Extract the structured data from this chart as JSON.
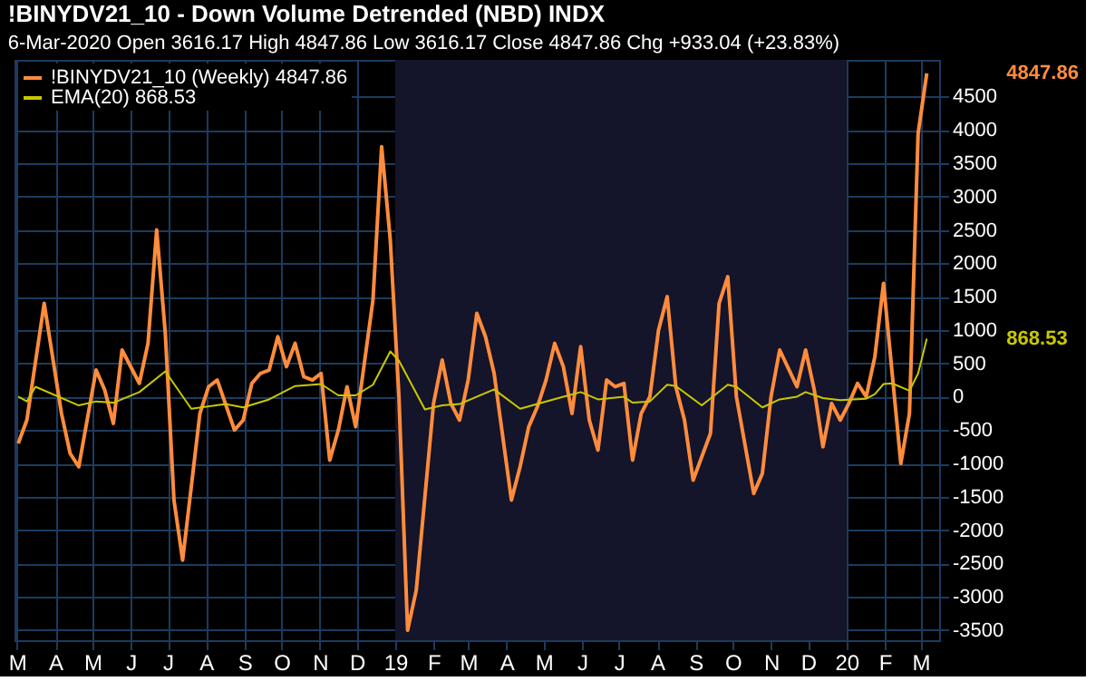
{
  "chart_data": {
    "type": "line",
    "title": "!BINYDV21_10 - Down Volume Detrended (NBD)  INDX",
    "subtitle": "6-Mar-2020     Open 3616.17  High 4847.86  Low 3616.17  Close 4847.86  Chg +933.04 (+23.83%)",
    "series": [
      {
        "name": "!BINYDV21_10 (Weekly) 4847.86",
        "color": "#ff8c3c",
        "x": [
          "2018-03-02",
          "2018-03-09",
          "2018-03-23",
          "2018-04-06",
          "2018-04-13",
          "2018-04-20",
          "2018-05-04",
          "2018-05-11",
          "2018-05-18",
          "2018-05-25",
          "2018-06-08",
          "2018-06-15",
          "2018-06-22",
          "2018-06-29",
          "2018-07-06",
          "2018-07-13",
          "2018-07-27",
          "2018-08-03",
          "2018-08-10",
          "2018-08-24",
          "2018-08-31",
          "2018-09-07",
          "2018-09-14",
          "2018-09-21",
          "2018-09-28",
          "2018-10-05",
          "2018-10-12",
          "2018-10-19",
          "2018-10-26",
          "2018-11-02",
          "2018-11-09",
          "2018-11-16",
          "2018-11-23",
          "2018-11-30",
          "2018-12-14",
          "2018-12-21",
          "2018-12-28",
          "2019-01-04",
          "2019-01-11",
          "2019-01-18",
          "2019-01-25",
          "2019-02-01",
          "2019-02-08",
          "2019-02-15",
          "2019-02-22",
          "2019-03-01",
          "2019-03-08",
          "2019-03-15",
          "2019-03-22",
          "2019-04-05",
          "2019-04-12",
          "2019-04-19",
          "2019-04-26",
          "2019-05-03",
          "2019-05-10",
          "2019-05-17",
          "2019-05-24",
          "2019-05-31",
          "2019-06-07",
          "2019-06-14",
          "2019-06-21",
          "2019-06-28",
          "2019-07-05",
          "2019-07-12",
          "2019-07-19",
          "2019-07-26",
          "2019-08-02",
          "2019-08-09",
          "2019-08-16",
          "2019-08-23",
          "2019-08-30",
          "2019-09-13",
          "2019-09-20",
          "2019-09-27",
          "2019-10-04",
          "2019-10-18",
          "2019-10-25",
          "2019-11-01",
          "2019-11-08",
          "2019-11-22",
          "2019-11-29",
          "2019-12-06",
          "2019-12-13",
          "2019-12-20",
          "2019-12-27",
          "2020-01-03",
          "2020-01-10",
          "2020-01-17",
          "2020-01-24",
          "2020-01-31",
          "2020-02-07",
          "2020-02-14",
          "2020-02-21",
          "2020-02-28",
          "2020-03-06"
        ],
        "values": [
          -700,
          -350,
          1400,
          -250,
          -850,
          -1050,
          400,
          100,
          -400,
          700,
          200,
          800,
          2500,
          950,
          -1550,
          -2450,
          -250,
          150,
          250,
          -500,
          -350,
          200,
          350,
          400,
          900,
          450,
          800,
          300,
          250,
          350,
          -950,
          -500,
          150,
          -450,
          1450,
          3750,
          2350,
          0,
          -3500,
          -2900,
          -1500,
          -100,
          550,
          -100,
          -350,
          250,
          1250,
          900,
          350,
          -1550,
          -1050,
          -450,
          -150,
          250,
          800,
          450,
          -250,
          750,
          -350,
          -800,
          250,
          150,
          200,
          -950,
          -250,
          0,
          1000,
          1500,
          150,
          -350,
          -1250,
          -550,
          1400,
          1800,
          0,
          -1450,
          -1150,
          0,
          700,
          150,
          700,
          100,
          -750,
          -100,
          -350,
          -100,
          200,
          0,
          600,
          1700,
          350,
          -1000,
          -250,
          3950,
          4847.86
        ]
      },
      {
        "name": "EMA(20) 868.53",
        "color": "#c8c800",
        "x": [
          "2018-03-02",
          "2018-03-09",
          "2018-03-16",
          "2018-04-20",
          "2018-05-04",
          "2018-05-18",
          "2018-06-08",
          "2018-06-29",
          "2018-07-20",
          "2018-08-17",
          "2018-08-31",
          "2018-09-21",
          "2018-10-12",
          "2018-11-02",
          "2018-11-16",
          "2018-11-30",
          "2018-12-14",
          "2018-12-28",
          "2019-01-04",
          "2019-01-25",
          "2019-02-08",
          "2019-02-22",
          "2019-03-22",
          "2019-04-12",
          "2019-05-17",
          "2019-05-31",
          "2019-06-14",
          "2019-07-05",
          "2019-07-12",
          "2019-07-26",
          "2019-08-09",
          "2019-08-16",
          "2019-09-06",
          "2019-09-27",
          "2019-10-04",
          "2019-10-25",
          "2019-11-08",
          "2019-11-22",
          "2019-11-29",
          "2019-12-13",
          "2019-12-27",
          "2020-01-17",
          "2020-01-24",
          "2020-01-31",
          "2020-02-07",
          "2020-02-21",
          "2020-02-28",
          "2020-03-06"
        ],
        "values": [
          0,
          -70,
          150,
          -130,
          -70,
          -90,
          70,
          380,
          -180,
          -110,
          -160,
          -40,
          160,
          190,
          20,
          20,
          180,
          680,
          540,
          -190,
          -130,
          -110,
          110,
          -180,
          0,
          70,
          -40,
          0,
          -90,
          -70,
          180,
          160,
          -130,
          180,
          150,
          -160,
          -40,
          0,
          70,
          -20,
          -50,
          -30,
          40,
          190,
          200,
          90,
          350,
          868.53
        ]
      }
    ],
    "xlim": [
      "2018-02-27",
      "2020-03-16"
    ],
    "xticks": [
      {
        "value": "2018-03-01",
        "label": "M"
      },
      {
        "value": "2018-04-01",
        "label": "A"
      },
      {
        "value": "2018-05-01",
        "label": "M"
      },
      {
        "value": "2018-06-01",
        "label": "J"
      },
      {
        "value": "2018-07-01",
        "label": "J"
      },
      {
        "value": "2018-08-01",
        "label": "A"
      },
      {
        "value": "2018-09-01",
        "label": "S"
      },
      {
        "value": "2018-10-01",
        "label": "O"
      },
      {
        "value": "2018-11-01",
        "label": "N"
      },
      {
        "value": "2018-12-01",
        "label": "D"
      },
      {
        "value": "2019-01-01",
        "label": "19"
      },
      {
        "value": "2019-02-01",
        "label": "F"
      },
      {
        "value": "2019-03-01",
        "label": "M"
      },
      {
        "value": "2019-04-01",
        "label": "A"
      },
      {
        "value": "2019-05-01",
        "label": "M"
      },
      {
        "value": "2019-06-01",
        "label": "J"
      },
      {
        "value": "2019-07-01",
        "label": "J"
      },
      {
        "value": "2019-08-01",
        "label": "A"
      },
      {
        "value": "2019-09-01",
        "label": "S"
      },
      {
        "value": "2019-10-01",
        "label": "O"
      },
      {
        "value": "2019-11-01",
        "label": "N"
      },
      {
        "value": "2019-12-01",
        "label": "D"
      },
      {
        "value": "2020-01-01",
        "label": "20"
      },
      {
        "value": "2020-02-01",
        "label": "F"
      },
      {
        "value": "2020-03-01",
        "label": "M"
      }
    ],
    "ylim": [
      -3650,
      5050
    ],
    "yticks": [
      -3500,
      -3000,
      -2500,
      -2000,
      -1500,
      -1000,
      -500,
      0,
      500,
      1000,
      1500,
      2000,
      2500,
      3000,
      3500,
      4000,
      4500
    ],
    "bands": [
      {
        "axis": "x",
        "from": "2019-01-01",
        "to": "2020-01-01",
        "color": "#14142a"
      }
    ],
    "annotations": [
      "4847.86",
      "868.53"
    ],
    "grid": true,
    "legend": "top left",
    "marker": "none",
    "line_style": "solid"
  }
}
